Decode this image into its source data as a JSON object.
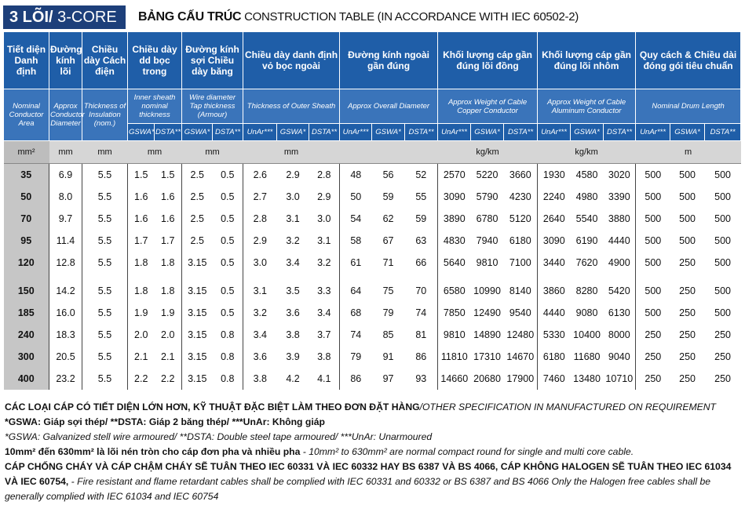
{
  "header": {
    "badge_bold": "3 LÕI/",
    "badge_text": " 3-CORE",
    "title_bold": "BẢNG CẤU TRÚC",
    "title_text": " CONSTRUCTION TABLE (IN ACCORDANCE WITH IEC 60502-2)"
  },
  "table": {
    "columns": [
      {
        "vi": "Tiết diện Danh định",
        "en": "Nominal Conductor Area",
        "unit": "mm²"
      },
      {
        "vi": "Đường kính lõi",
        "en": "Approx Conductor Diameter",
        "unit": "mm"
      },
      {
        "vi": "Chiều dày Cách điện",
        "en": "Thickness of Insulation (nom.)",
        "unit": "mm"
      },
      {
        "vi": "Chiều dày dd bọc trong",
        "en": "Inner sheath nominal thickness",
        "sub": [
          "GSWA*",
          "DSTA**"
        ],
        "unit": "mm"
      },
      {
        "vi": "Đường kính sợi Chiều dày băng",
        "en": "Wire diameter Tap thickness (Armour)",
        "sub": [
          "GSWA*",
          "DSTA**"
        ],
        "unit": "mm"
      },
      {
        "vi": "Chiều dày danh định vỏ bọc ngoài",
        "en": "Thickness of Outer Sheath",
        "sub": [
          "UnAr***",
          "GSWA*",
          "DSTA**"
        ],
        "unit": "mm"
      },
      {
        "vi": "Đường kính ngoài gần đúng",
        "en": "Approx Overall Diameter",
        "sub": [
          "UnAr***",
          "GSWA*",
          "DSTA**"
        ]
      },
      {
        "vi": "Khối lượng cáp gần đúng lõi đồng",
        "en": "Approx Weight of Cable Copper Conductor",
        "sub": [
          "UnAr***",
          "GSWA*",
          "DSTA**"
        ],
        "unit": "kg/km"
      },
      {
        "vi": "Khối lượng cáp gần đúng lõi nhôm",
        "en": "Approx Weight of Cable Aluminum Conductor",
        "sub": [
          "UnAr***",
          "GSWA*",
          "DSTA**"
        ],
        "unit": "kg/km"
      },
      {
        "vi": "Quy cách & Chiều dài đóng gói tiêu chuẩn",
        "en": "Nominal Drum Length",
        "sub": [
          "UnAr***",
          "GSWA*",
          "DSTA**"
        ],
        "unit": "m"
      }
    ],
    "row_groups": [
      [
        [
          "35",
          "6.9",
          "5.5",
          "1.5",
          "1.5",
          "2.5",
          "0.5",
          "2.6",
          "2.9",
          "2.8",
          "48",
          "56",
          "52",
          "2570",
          "5220",
          "3660",
          "1930",
          "4580",
          "3020",
          "500",
          "500",
          "500"
        ],
        [
          "50",
          "8.0",
          "5.5",
          "1.6",
          "1.6",
          "2.5",
          "0.5",
          "2.7",
          "3.0",
          "2.9",
          "50",
          "59",
          "55",
          "3090",
          "5790",
          "4230",
          "2240",
          "4980",
          "3390",
          "500",
          "500",
          "500"
        ],
        [
          "70",
          "9.7",
          "5.5",
          "1.6",
          "1.6",
          "2.5",
          "0.5",
          "2.8",
          "3.1",
          "3.0",
          "54",
          "62",
          "59",
          "3890",
          "6780",
          "5120",
          "2640",
          "5540",
          "3880",
          "500",
          "500",
          "500"
        ],
        [
          "95",
          "11.4",
          "5.5",
          "1.7",
          "1.7",
          "2.5",
          "0.5",
          "2.9",
          "3.2",
          "3.1",
          "58",
          "67",
          "63",
          "4830",
          "7940",
          "6180",
          "3090",
          "6190",
          "4440",
          "500",
          "500",
          "500"
        ],
        [
          "120",
          "12.8",
          "5.5",
          "1.8",
          "1.8",
          "3.15",
          "0.5",
          "3.0",
          "3.4",
          "3.2",
          "61",
          "71",
          "66",
          "5640",
          "9810",
          "7100",
          "3440",
          "7620",
          "4900",
          "500",
          "250",
          "500"
        ]
      ],
      [
        [
          "150",
          "14.2",
          "5.5",
          "1.8",
          "1.8",
          "3.15",
          "0.5",
          "3.1",
          "3.5",
          "3.3",
          "64",
          "75",
          "70",
          "6580",
          "10990",
          "8140",
          "3860",
          "8280",
          "5420",
          "500",
          "250",
          "500"
        ],
        [
          "185",
          "16.0",
          "5.5",
          "1.9",
          "1.9",
          "3.15",
          "0.5",
          "3.2",
          "3.6",
          "3.4",
          "68",
          "79",
          "74",
          "7850",
          "12490",
          "9540",
          "4440",
          "9080",
          "6130",
          "500",
          "250",
          "500"
        ],
        [
          "240",
          "18.3",
          "5.5",
          "2.0",
          "2.0",
          "3.15",
          "0.8",
          "3.4",
          "3.8",
          "3.7",
          "74",
          "85",
          "81",
          "9810",
          "14890",
          "12480",
          "5330",
          "10400",
          "8000",
          "250",
          "250",
          "250"
        ],
        [
          "300",
          "20.5",
          "5.5",
          "2.1",
          "2.1",
          "3.15",
          "0.8",
          "3.6",
          "3.9",
          "3.8",
          "79",
          "91",
          "86",
          "11810",
          "17310",
          "14670",
          "6180",
          "11680",
          "9040",
          "250",
          "250",
          "250"
        ],
        [
          "400",
          "23.2",
          "5.5",
          "2.2",
          "2.2",
          "3.15",
          "0.8",
          "3.8",
          "4.2",
          "4.1",
          "86",
          "97",
          "93",
          "14660",
          "20680",
          "17900",
          "7460",
          "13480",
          "10710",
          "250",
          "250",
          "250"
        ]
      ]
    ]
  },
  "notes": [
    [
      {
        "text": "CÁC LOẠI CÁP CÓ TIẾT DIỆN LỚN HƠN, KỸ THUẬT ĐẶC BIỆT LÀM THEO ĐƠN ĐẶT HÀNG",
        "style": "b"
      },
      {
        "text": "/OTHER SPECIFICATION IN MANUFACTURED ON REQUIREMENT",
        "style": "i"
      }
    ],
    [
      {
        "text": "*GSWA: Giáp sợi thép/ **DSTA: Giáp 2 băng thép/ ***UnAr: Không giáp",
        "style": "b"
      }
    ],
    [
      {
        "text": "*GSWA: Galvanized stell wire armoured/ **DSTA: Double steel tape armoured/ ***UnAr: Unarmoured",
        "style": "i"
      }
    ],
    [
      {
        "text": "10mm² đến 630mm² là lõi nén tròn cho cáp đơn pha và nhiều pha",
        "style": "b"
      },
      {
        "text": " - 10mm² to 630mm² are normal compact round for single and multi core cable.",
        "style": "i"
      }
    ],
    [
      {
        "text": "CÁP CHỐNG CHÁY VÀ CÁP CHẬM CHÁY SẼ TUÂN THEO IEC 60331 VÀ IEC 60332 HAY BS 6387 VÀ BS 4066, CÁP KHÔNG HALOGEN SẼ TUÂN THEO IEC 61034 VÀ IEC 60754,",
        "style": "b"
      },
      {
        "text": " - Fire resistant and flame retardant cables shall be complied with IEC 60331 and 60332 or BS 6387 and BS 4066 Only the Halogen free cables shall be generally complied with IEC 61034 and IEC 60754",
        "style": "i"
      }
    ]
  ]
}
